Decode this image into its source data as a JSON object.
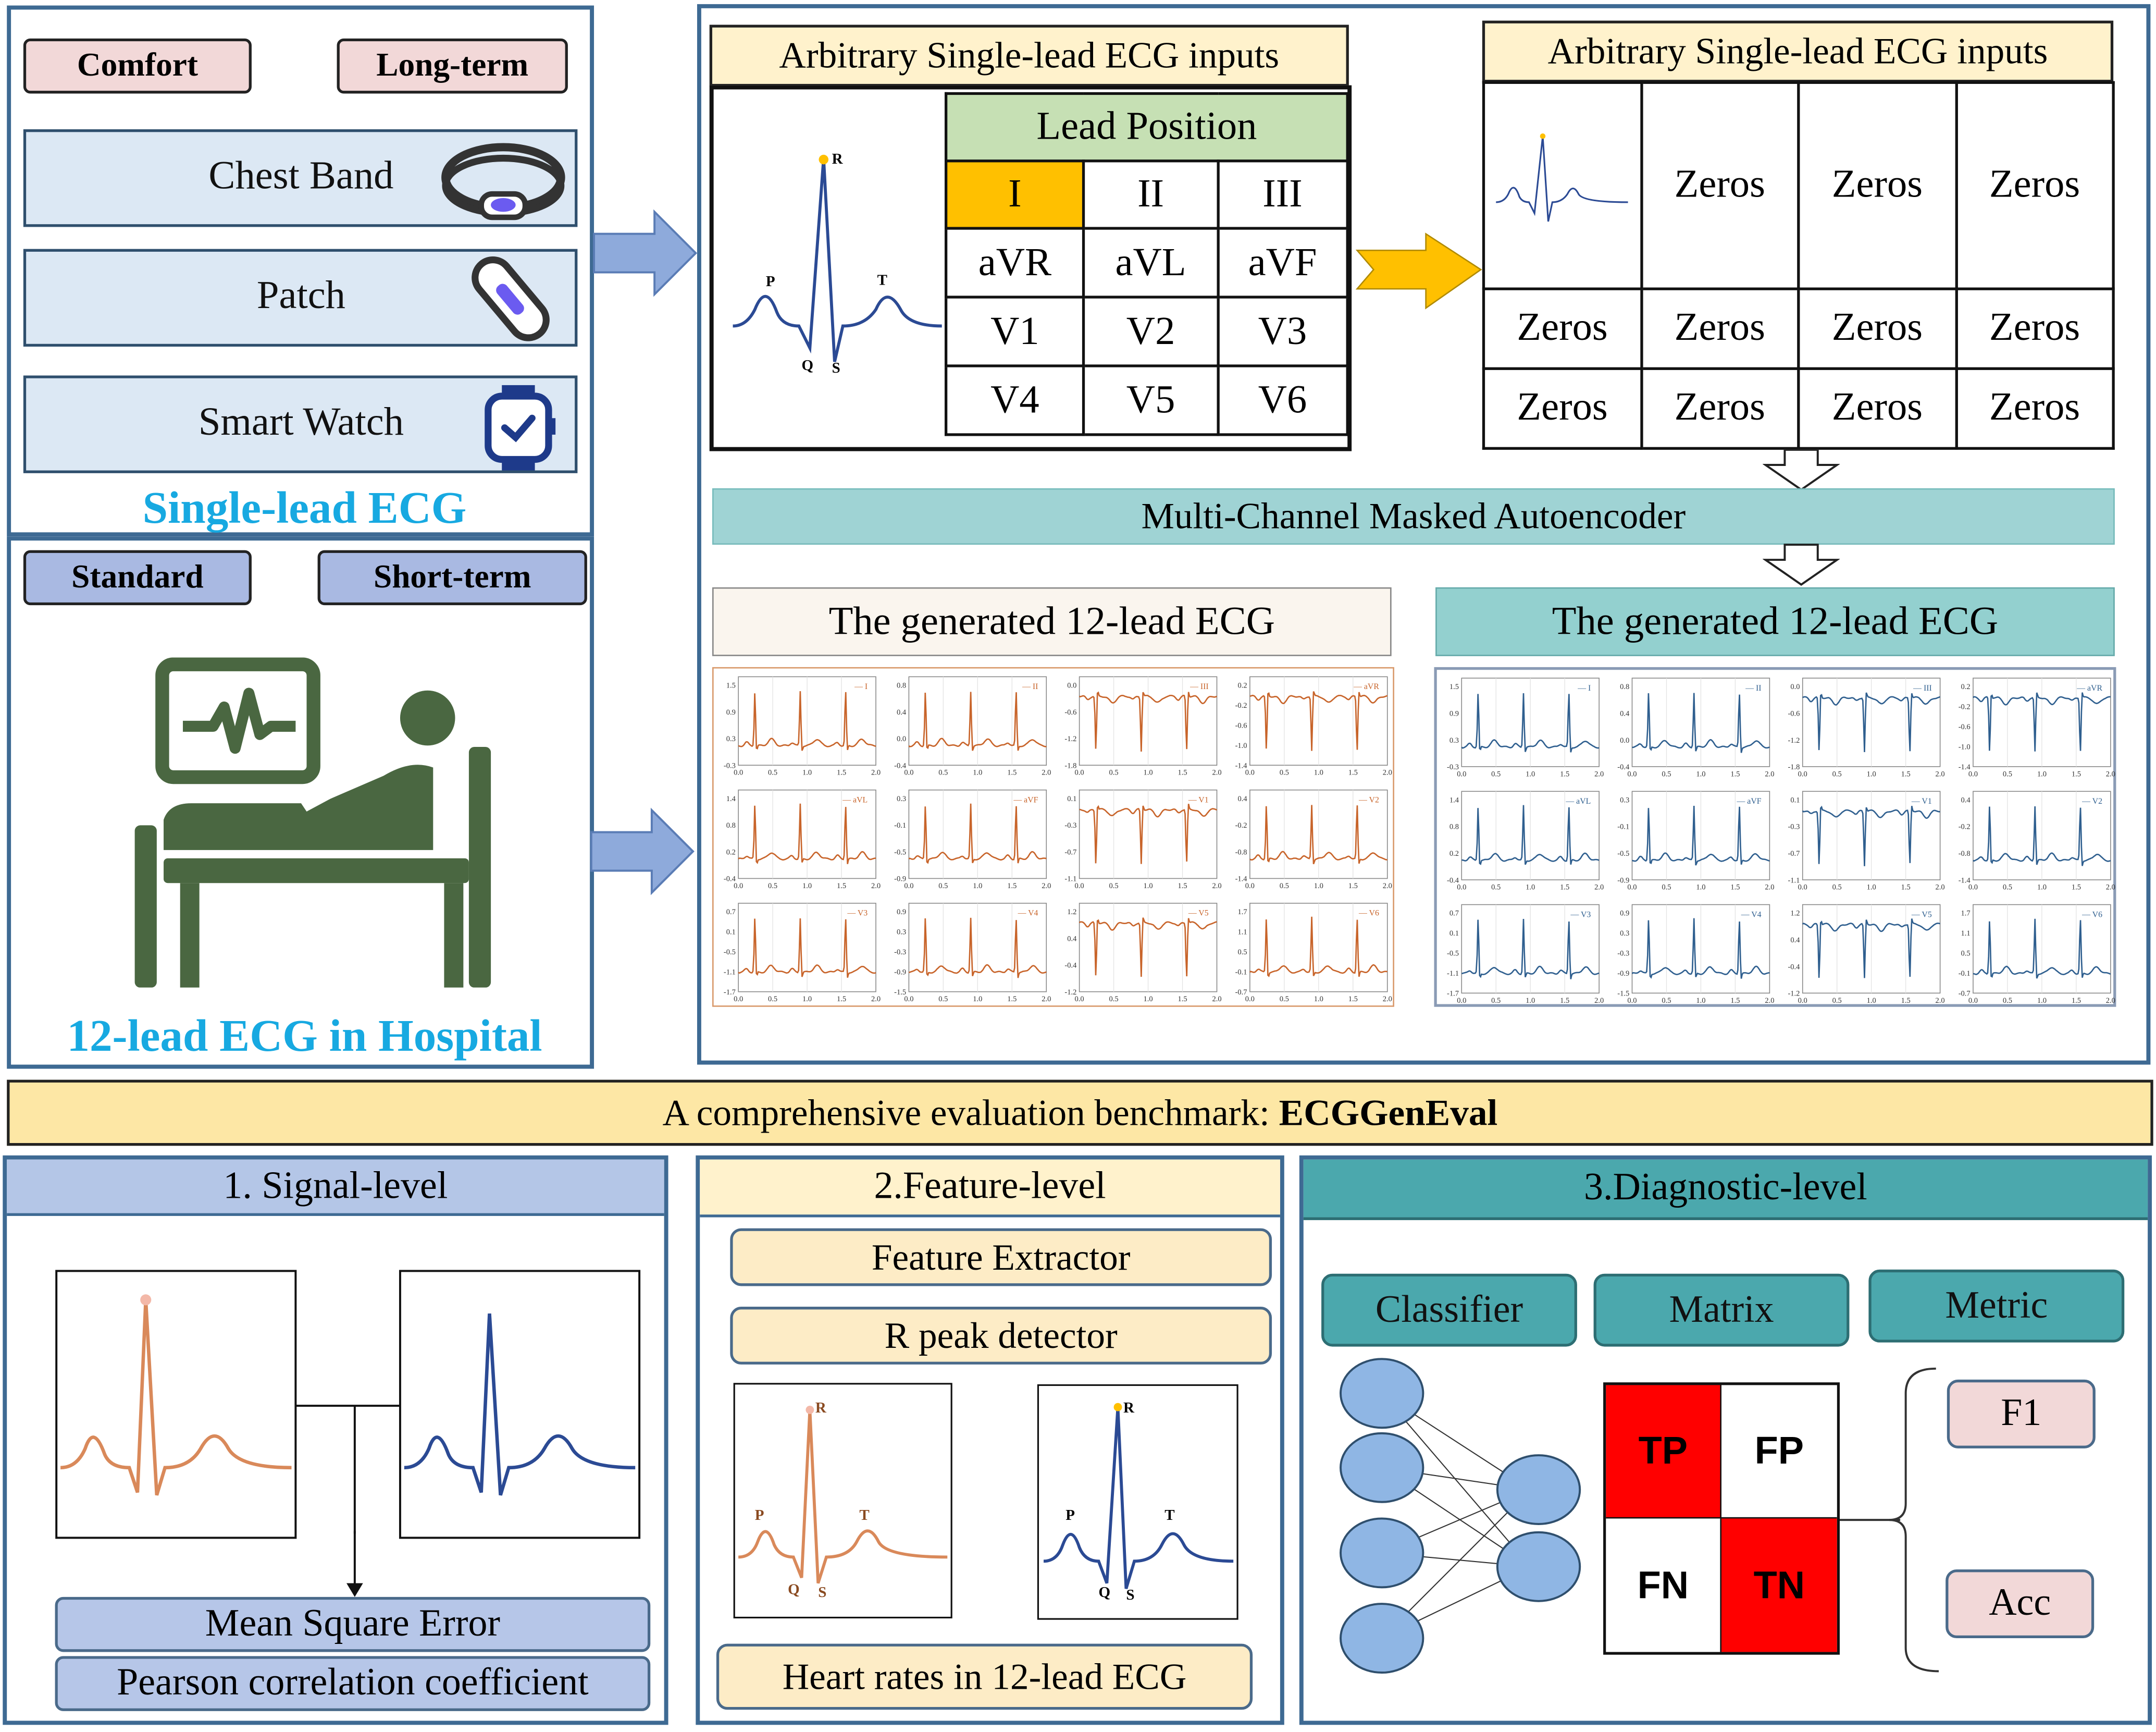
{
  "single_lead_panel": {
    "tags": [
      "Comfort",
      "Long-term"
    ],
    "devices": [
      "Chest Band",
      "Patch",
      "Smart Watch"
    ],
    "title": "Single-lead ECG"
  },
  "hospital_panel": {
    "tags": [
      "Standard",
      "Short-term"
    ],
    "title": "12-lead ECG in Hospital"
  },
  "input_box": {
    "header": "Arbitrary Single-lead ECG inputs",
    "lead_position_title": "Lead Position",
    "leads": [
      [
        "I",
        "II",
        "III"
      ],
      [
        "aVR",
        "aVL",
        "aVF"
      ],
      [
        "V1",
        "V2",
        "V3"
      ],
      [
        "V4",
        "V5",
        "V6"
      ]
    ],
    "selected_lead": "I",
    "wave_labels": [
      "P",
      "R",
      "T",
      "Q",
      "S"
    ]
  },
  "masked_input": {
    "header": "Arbitrary Single-lead ECG inputs",
    "cell_text": "Zeros"
  },
  "model_bar": "Multi-Channel Masked Autoencoder",
  "generated": {
    "left_title": "The generated 12-lead ECG",
    "right_title": "The generated 12-lead ECG",
    "lead_labels": [
      "I",
      "II",
      "III",
      "aVR",
      "aVL",
      "aVF",
      "V1",
      "V2",
      "V3",
      "V4",
      "V5",
      "V6"
    ],
    "x_ticks": [
      "0.0",
      "0.5",
      "1.0",
      "1.5",
      "2.0"
    ],
    "y_ticks": [
      [
        "1.5",
        "0.9",
        "0.3",
        "-0.3"
      ],
      [
        "0.8",
        "0.4",
        "0.0",
        "-0.4"
      ],
      [
        "0.0",
        "-0.6",
        "-1.2",
        "-1.8"
      ],
      [
        "0.2",
        "-0.2",
        "-0.6",
        "-1.0",
        "-1.4"
      ],
      [
        "1.4",
        "0.8",
        "0.2",
        "-0.4"
      ],
      [
        "0.3",
        "-0.1",
        "-0.5",
        "-0.9"
      ],
      [
        "0.1",
        "-0.3",
        "-0.7",
        "-1.1"
      ],
      [
        "0.4",
        "-0.2",
        "-0.8",
        "-1.4"
      ],
      [
        "0.7",
        "0.1",
        "-0.5",
        "-1.1",
        "-1.7"
      ],
      [
        "0.9",
        "0.3",
        "-0.3",
        "-0.9",
        "-1.5"
      ],
      [
        "1.2",
        "0.4",
        "-0.4",
        "-1.2"
      ],
      [
        "1.7",
        "1.1",
        "0.5",
        "-0.1",
        "-0.7"
      ]
    ],
    "left_color": "#c8642a",
    "right_color": "#2f5f8f"
  },
  "benchmark": {
    "prefix": "A comprehensive evaluation benchmark: ",
    "name": "ECGGenEval"
  },
  "signal_level": {
    "header": "1. Signal-level",
    "metrics": [
      "Mean Square Error",
      "Pearson correlation coefficient"
    ]
  },
  "feature_level": {
    "header": "2.Feature-level",
    "items": [
      "Feature Extractor",
      "R peak detector"
    ],
    "footer": "Heart rates in 12-lead ECG",
    "wave_labels": [
      "P",
      "R",
      "T",
      "Q",
      "S"
    ]
  },
  "diagnostic_level": {
    "header": "3.Diagnostic-level",
    "columns": [
      "Classifier",
      "Matrix",
      "Metric"
    ],
    "matrix": [
      "TP",
      "FP",
      "FN",
      "TN"
    ],
    "metrics": [
      "F1",
      "Acc"
    ]
  },
  "colors": {
    "panel_border": "#3e6a93",
    "hospital_icon": "#4a6741",
    "orange_ecg": "#d9895a",
    "blue_ecg": "#2b4a94",
    "confusion_red": "#ff0000",
    "selected_lead": "#ffc000",
    "lead_position_header": "#c6e0b4"
  }
}
